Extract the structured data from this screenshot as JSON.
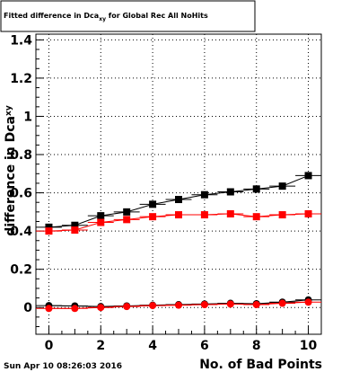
{
  "chart_data": {
    "type": "scatter",
    "title": "Fitted difference in Dca",
    "title_sub": "xy",
    "title_suffix": " for Global Rec All NoHits",
    "xlabel": "No. of Bad Points",
    "ylabel": "difference in Dca",
    "ylabel_sub": "xy",
    "timestamp": "Sun Apr 10 08:26:03 2016",
    "xlim": [
      -0.5,
      10.5
    ],
    "ylim": [
      -0.14,
      1.43
    ],
    "grid": true,
    "xticks": [
      0,
      2,
      4,
      6,
      8,
      10
    ],
    "yticks": [
      0,
      0.2,
      0.4,
      0.6,
      0.8,
      1,
      1.2,
      1.4
    ],
    "ytick_labels": [
      "0",
      "0.2",
      "0.4",
      "0.6",
      "0.8",
      "1",
      "1.2",
      "1.4"
    ],
    "series": [
      {
        "marker": "square",
        "color": "#000000",
        "x": [
          0,
          1,
          2,
          3,
          4,
          5,
          6,
          7,
          8,
          9,
          10
        ],
        "y": [
          0.42,
          0.43,
          0.48,
          0.5,
          0.54,
          0.565,
          0.59,
          0.605,
          0.62,
          0.635,
          0.69
        ]
      },
      {
        "marker": "square",
        "color": "#ff0000",
        "x": [
          0,
          1,
          2,
          3,
          4,
          5,
          6,
          7,
          8,
          9,
          10
        ],
        "y": [
          0.4,
          0.405,
          0.445,
          0.46,
          0.475,
          0.485,
          0.485,
          0.49,
          0.475,
          0.485,
          0.49
        ]
      },
      {
        "marker": "circle",
        "color": "#000000",
        "x": [
          0,
          1,
          2,
          3,
          4,
          5,
          6,
          7,
          8,
          9,
          10
        ],
        "y": [
          0.01,
          0.008,
          0.005,
          0.008,
          0.012,
          0.015,
          0.018,
          0.022,
          0.02,
          0.028,
          0.04
        ]
      },
      {
        "marker": "circle",
        "color": "#ff0000",
        "x": [
          0,
          1,
          2,
          3,
          4,
          5,
          6,
          7,
          8,
          9,
          10
        ],
        "y": [
          -0.005,
          -0.005,
          0.0,
          0.005,
          0.01,
          0.012,
          0.015,
          0.018,
          0.015,
          0.022,
          0.028
        ]
      }
    ]
  }
}
